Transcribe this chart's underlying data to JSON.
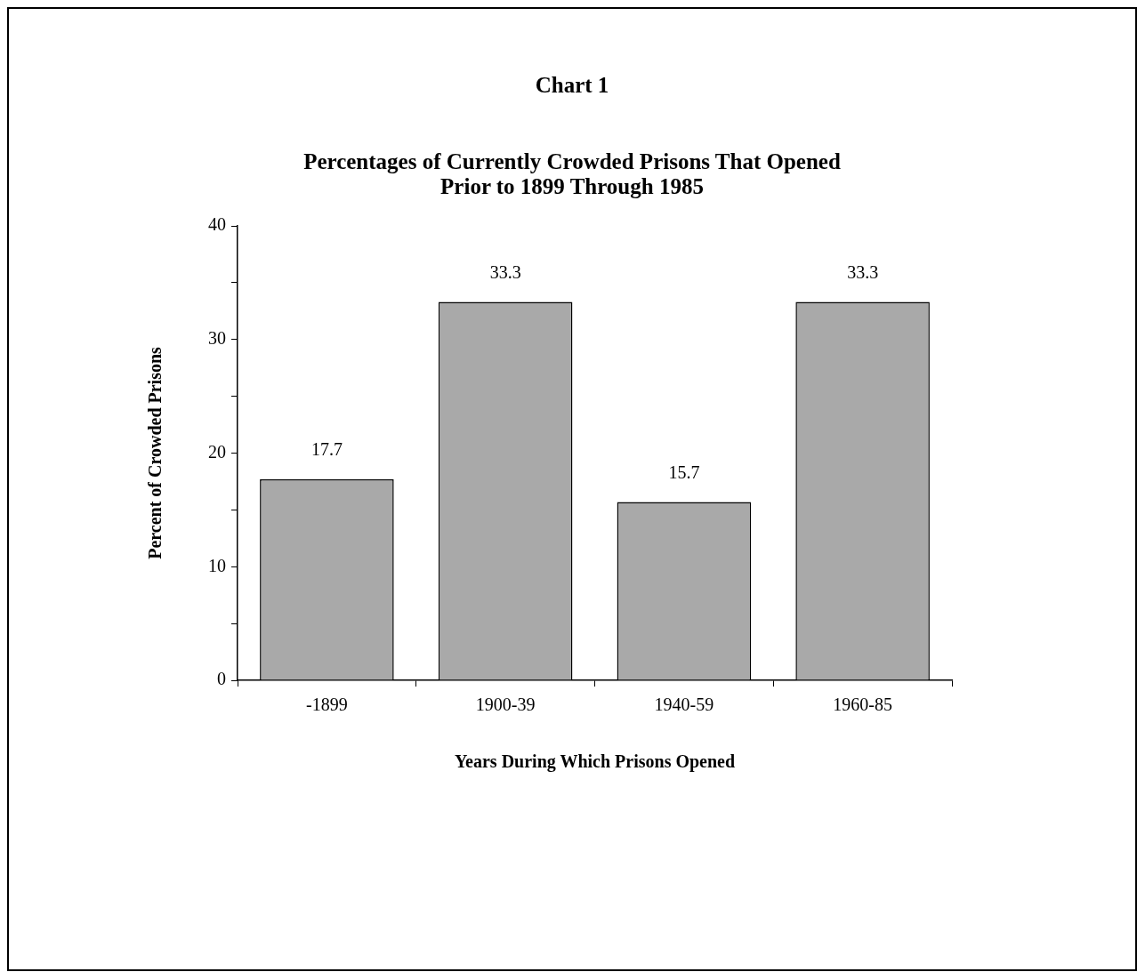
{
  "chart_data": {
    "type": "bar",
    "title": "Chart 1",
    "subtitle": "Percentages of Currently Crowded Prisons That Opened Prior to 1899 Through 1985",
    "xlabel": "Years During Which Prisons Opened",
    "ylabel": "Percent of Crowded Prisons",
    "categories": [
      "-1899",
      "1900-39",
      "1940-59",
      "1960-85"
    ],
    "values": [
      17.7,
      33.3,
      15.7,
      33.3
    ],
    "color": "#a9a9a9",
    "ylim": [
      0,
      40
    ],
    "yticks": [
      0,
      {
        "value": 5,
        "label": null
      },
      10,
      {
        "value": 15,
        "label": null
      },
      20,
      {
        "value": 25,
        "label": null
      },
      30,
      {
        "value": 35,
        "label": null
      },
      40
    ],
    "data_labels": true,
    "grid": false,
    "legend": false
  }
}
